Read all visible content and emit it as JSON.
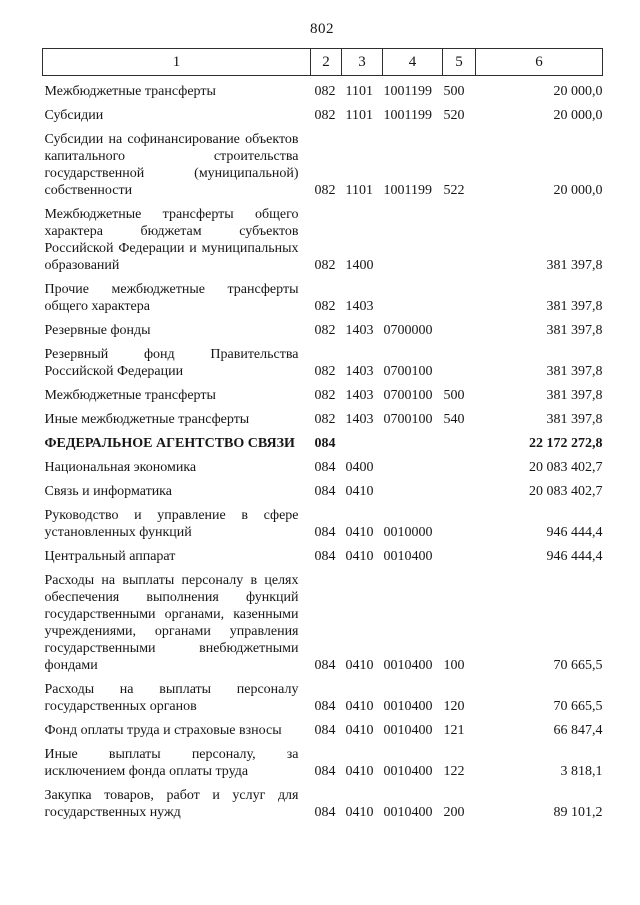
{
  "page": {
    "number": "802"
  },
  "table": {
    "header": [
      "1",
      "2",
      "3",
      "4",
      "5",
      "6"
    ],
    "rows": [
      {
        "label": "Межбюджетные трансферты",
        "c2": "082",
        "c3": "1101",
        "c4": "1001199",
        "c5": "500",
        "amount": "20 000,0",
        "bold": false
      },
      {
        "label": "Субсидии",
        "c2": "082",
        "c3": "1101",
        "c4": "1001199",
        "c5": "520",
        "amount": "20 000,0",
        "bold": false
      },
      {
        "label": "Субсидии на софинансирование объектов капитального строительства государственной (муниципальной) собственности",
        "c2": "082",
        "c3": "1101",
        "c4": "1001199",
        "c5": "522",
        "amount": "20 000,0",
        "bold": false
      },
      {
        "label": "Межбюджетные трансферты общего характера бюджетам субъектов Российской Федерации и муниципальных образований",
        "c2": "082",
        "c3": "1400",
        "c4": "",
        "c5": "",
        "amount": "381 397,8",
        "bold": false
      },
      {
        "label": "Прочие межбюджетные трансферты общего характера",
        "c2": "082",
        "c3": "1403",
        "c4": "",
        "c5": "",
        "amount": "381 397,8",
        "bold": false
      },
      {
        "label": "Резервные фонды",
        "c2": "082",
        "c3": "1403",
        "c4": "0700000",
        "c5": "",
        "amount": "381 397,8",
        "bold": false
      },
      {
        "label": "Резервный фонд Правительства Российской Федерации",
        "c2": "082",
        "c3": "1403",
        "c4": "0700100",
        "c5": "",
        "amount": "381 397,8",
        "bold": false
      },
      {
        "label": "Межбюджетные трансферты",
        "c2": "082",
        "c3": "1403",
        "c4": "0700100",
        "c5": "500",
        "amount": "381 397,8",
        "bold": false
      },
      {
        "label": "Иные межбюджетные трансферты",
        "c2": "082",
        "c3": "1403",
        "c4": "0700100",
        "c5": "540",
        "amount": "381 397,8",
        "bold": false
      },
      {
        "label": "ФЕДЕРАЛЬНОЕ АГЕНТСТВО СВЯЗИ",
        "c2": "084",
        "c3": "",
        "c4": "",
        "c5": "",
        "amount": "22 172 272,8",
        "bold": true
      },
      {
        "label": "Национальная экономика",
        "c2": "084",
        "c3": "0400",
        "c4": "",
        "c5": "",
        "amount": "20 083 402,7",
        "bold": false
      },
      {
        "label": "Связь и информатика",
        "c2": "084",
        "c3": "0410",
        "c4": "",
        "c5": "",
        "amount": "20 083 402,7",
        "bold": false
      },
      {
        "label": "Руководство и управление в сфере установленных функций",
        "c2": "084",
        "c3": "0410",
        "c4": "0010000",
        "c5": "",
        "amount": "946 444,4",
        "bold": false
      },
      {
        "label": "Центральный аппарат",
        "c2": "084",
        "c3": "0410",
        "c4": "0010400",
        "c5": "",
        "amount": "946 444,4",
        "bold": false
      },
      {
        "label": "Расходы на выплаты персоналу в целях обеспечения выполнения функций государственными органами, казенными учреждениями, органами управления государственными внебюджетными фондами",
        "c2": "084",
        "c3": "0410",
        "c4": "0010400",
        "c5": "100",
        "amount": "70 665,5",
        "bold": false
      },
      {
        "label": "Расходы на выплаты персоналу государственных органов",
        "c2": "084",
        "c3": "0410",
        "c4": "0010400",
        "c5": "120",
        "amount": "70 665,5",
        "bold": false
      },
      {
        "label": "Фонд оплаты труда и страховые взносы",
        "c2": "084",
        "c3": "0410",
        "c4": "0010400",
        "c5": "121",
        "amount": "66 847,4",
        "bold": false
      },
      {
        "label": "Иные выплаты персоналу, за исключением фонда оплаты труда",
        "c2": "084",
        "c3": "0410",
        "c4": "0010400",
        "c5": "122",
        "amount": "3 818,1",
        "bold": false
      },
      {
        "label": "Закупка товаров, работ и услуг для государственных нужд",
        "c2": "084",
        "c3": "0410",
        "c4": "0010400",
        "c5": "200",
        "amount": "89 101,2",
        "bold": false
      }
    ]
  }
}
